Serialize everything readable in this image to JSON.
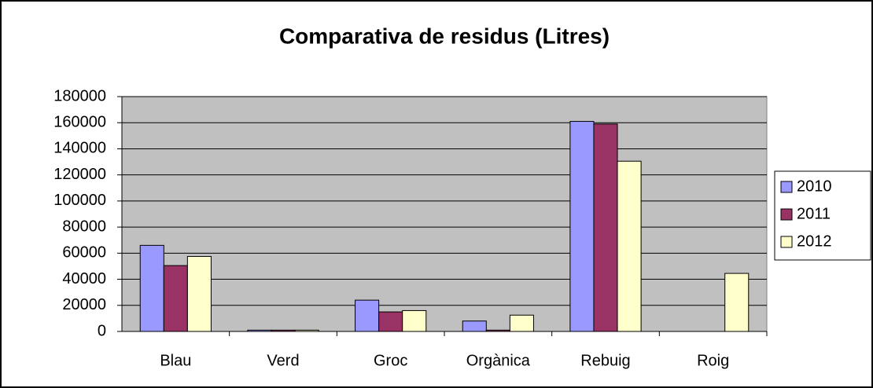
{
  "chart_data": {
    "type": "bar",
    "title": "Comparativa de residus (Litres)",
    "categories": [
      "Blau",
      "Verd",
      "Groc",
      "Orgànica",
      "Rebuig",
      "Roig"
    ],
    "series": [
      {
        "name": "2010",
        "color": "#9999ff",
        "values": [
          66000,
          1000,
          24000,
          8000,
          161000,
          0
        ]
      },
      {
        "name": "2011",
        "color": "#993366",
        "values": [
          50500,
          1000,
          15000,
          1000,
          159000,
          0
        ]
      },
      {
        "name": "2012",
        "color": "#ffffcc",
        "values": [
          57500,
          1000,
          16000,
          12500,
          130500,
          44500
        ]
      }
    ],
    "ylim": [
      0,
      180000
    ],
    "yticks": [
      0,
      20000,
      40000,
      60000,
      80000,
      100000,
      120000,
      140000,
      160000,
      180000
    ],
    "grid": true,
    "legend": "right"
  }
}
